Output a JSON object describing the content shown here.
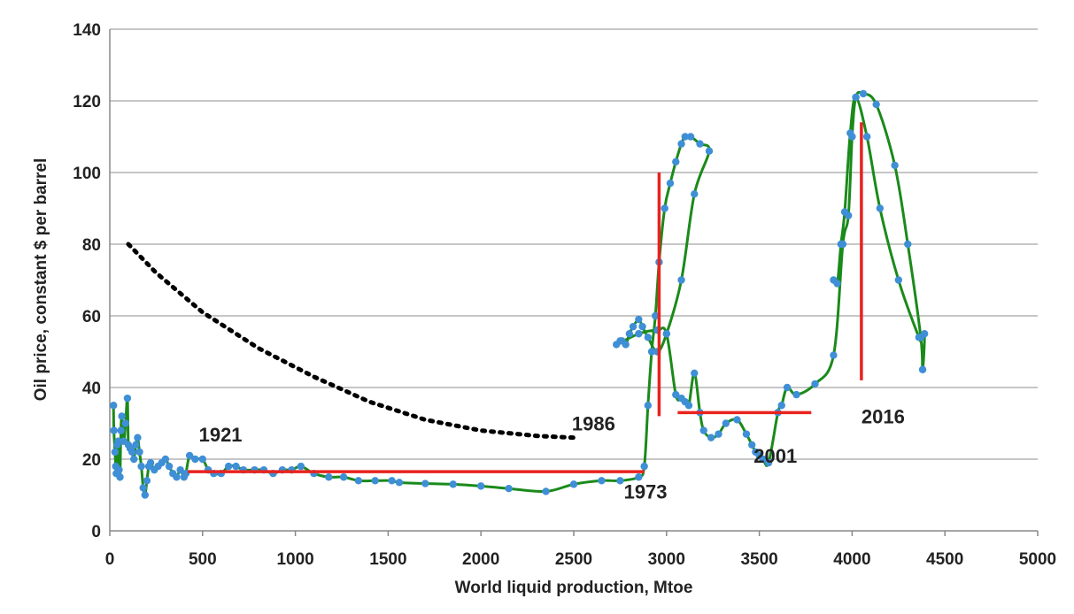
{
  "chart_data": {
    "type": "line",
    "xlabel": "World liquid production, Mtoe",
    "ylabel": "Oil price, constant $ per barrel",
    "xlim": [
      0,
      5000
    ],
    "ylim": [
      0,
      140
    ],
    "x_ticks": [
      0,
      500,
      1000,
      1500,
      2000,
      2500,
      3000,
      3500,
      4000,
      4500,
      5000
    ],
    "y_ticks": [
      0,
      20,
      40,
      60,
      80,
      100,
      120,
      140
    ],
    "grid": "horizontal",
    "colors": {
      "line": "#1a8a1a",
      "points": "#3f8fd6",
      "reference": "#e8231f",
      "trend": "#000000",
      "grid": "#b3b3b3"
    },
    "series": [
      {
        "x": [
          20,
          22,
          28,
          32,
          35,
          40,
          45,
          50,
          55,
          60,
          65,
          75,
          85,
          95,
          100,
          110,
          120,
          130,
          140,
          150,
          160,
          170,
          180,
          190,
          200,
          210,
          220,
          240,
          260,
          280,
          300,
          320,
          340,
          360,
          380,
          400,
          410,
          430,
          460,
          500,
          530,
          560,
          600,
          640,
          680,
          720,
          780,
          830,
          880,
          930,
          980,
          1030,
          1100,
          1180,
          1260,
          1340,
          1430,
          1520,
          1560,
          1700,
          1850,
          2000,
          2150,
          2350,
          2500,
          2650,
          2750,
          2850,
          2880,
          2900,
          2920,
          2940,
          2960,
          2990,
          3020,
          3050,
          3080,
          3100,
          3130,
          3180,
          3230,
          3150,
          3080,
          3000,
          2950,
          2900,
          2870,
          2850,
          2820,
          2800,
          2780,
          2760,
          2750,
          2730,
          2850,
          2950,
          3000,
          3050,
          3080,
          3100,
          3120,
          3150,
          3180,
          3200,
          3240,
          3280,
          3320,
          3380,
          3430,
          3460,
          3480,
          3500,
          3520,
          3550,
          3600,
          3620,
          3650,
          3700,
          3800,
          3900,
          3950,
          3980,
          4000,
          4020,
          4060,
          4130,
          4230,
          4300,
          4370,
          4380,
          4390,
          4370,
          4360,
          4250,
          4150,
          4080,
          4020,
          3990,
          3960,
          3940,
          3920,
          3900
        ],
        "y": [
          35,
          28,
          22,
          18,
          16,
          24,
          25,
          17,
          15,
          28,
          32,
          25,
          30,
          37,
          24,
          23,
          22,
          20,
          24,
          26,
          22,
          18,
          12,
          10,
          14,
          18,
          19,
          17,
          18,
          19,
          20,
          18,
          16,
          15,
          17,
          15,
          16,
          21,
          20,
          20,
          17,
          16,
          16,
          18,
          18,
          17,
          17,
          17,
          16,
          17,
          17,
          18,
          16,
          15,
          15,
          14,
          14,
          14,
          13.5,
          13.2,
          13,
          12.5,
          11.8,
          11,
          13,
          14,
          14,
          15,
          18,
          35,
          50,
          60,
          75,
          90,
          97,
          103,
          108,
          110,
          110,
          108,
          106,
          94,
          70,
          55,
          50,
          54,
          57,
          59,
          57,
          55,
          52,
          53,
          53,
          52,
          55,
          56,
          55,
          38,
          37,
          36,
          35,
          44,
          33,
          28,
          26,
          27,
          30,
          31,
          27,
          24,
          22,
          21,
          20,
          19,
          33,
          35,
          40,
          38,
          41,
          49,
          80,
          88,
          110,
          121,
          122,
          119,
          102,
          80,
          54,
          45,
          55,
          54,
          54,
          70,
          90,
          110,
          121,
          111,
          89,
          80,
          69,
          70
        ]
      }
    ],
    "reference_lines": [
      {
        "x1": 420,
        "y1": 16.5,
        "x2": 2880,
        "y2": 16.5
      },
      {
        "x1": 2960,
        "y1": 32,
        "x2": 2960,
        "y2": 100
      },
      {
        "x1": 3060,
        "y1": 33,
        "x2": 3780,
        "y2": 33
      },
      {
        "x1": 4050,
        "y1": 42,
        "x2": 4050,
        "y2": 114
      }
    ],
    "trend_curve": {
      "x": [
        100,
        250,
        500,
        800,
        1100,
        1400,
        1700,
        2000,
        2300,
        2500
      ],
      "y": [
        80,
        72,
        61,
        51,
        43,
        36,
        31,
        28,
        26.5,
        26
      ]
    },
    "annotations": [
      {
        "text": "1921",
        "x": 480,
        "y": 25
      },
      {
        "text": "1986",
        "x": 2490,
        "y": 28
      },
      {
        "text": "1973",
        "x": 2770,
        "y": 9
      },
      {
        "text": "2001",
        "x": 3470,
        "y": 19
      },
      {
        "text": "2016",
        "x": 4050,
        "y": 30
      }
    ]
  }
}
